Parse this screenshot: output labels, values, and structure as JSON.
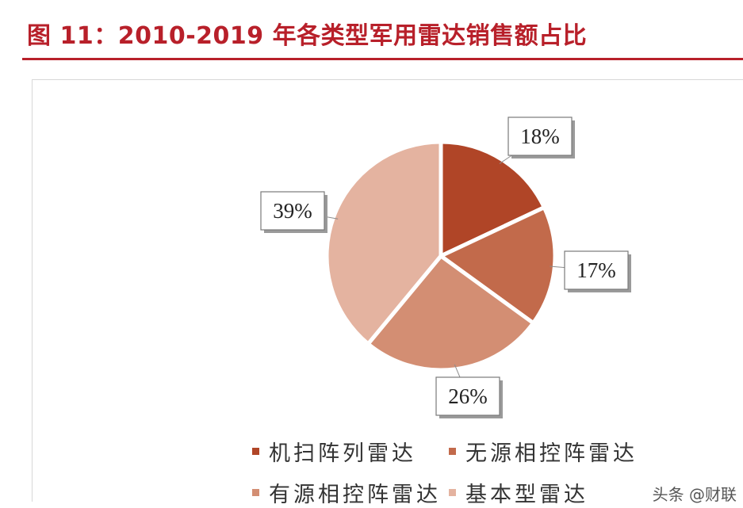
{
  "header": {
    "title": "图 11：2010-2019 年各类型军用雷达销售额占比"
  },
  "chart_data": {
    "type": "pie",
    "categories": [
      "机扫阵列雷达",
      "无源相控阵雷达",
      "有源相控阵雷达",
      "基本型雷达"
    ],
    "values": [
      18,
      17,
      26,
      39
    ],
    "labels": [
      "18%",
      "17%",
      "26%",
      "39%"
    ],
    "colors": [
      "#b04527",
      "#c26a4b",
      "#d38e73",
      "#e4b3a0"
    ],
    "legend_placement": "bottom"
  },
  "watermark": {
    "text": "头条 @财联"
  }
}
